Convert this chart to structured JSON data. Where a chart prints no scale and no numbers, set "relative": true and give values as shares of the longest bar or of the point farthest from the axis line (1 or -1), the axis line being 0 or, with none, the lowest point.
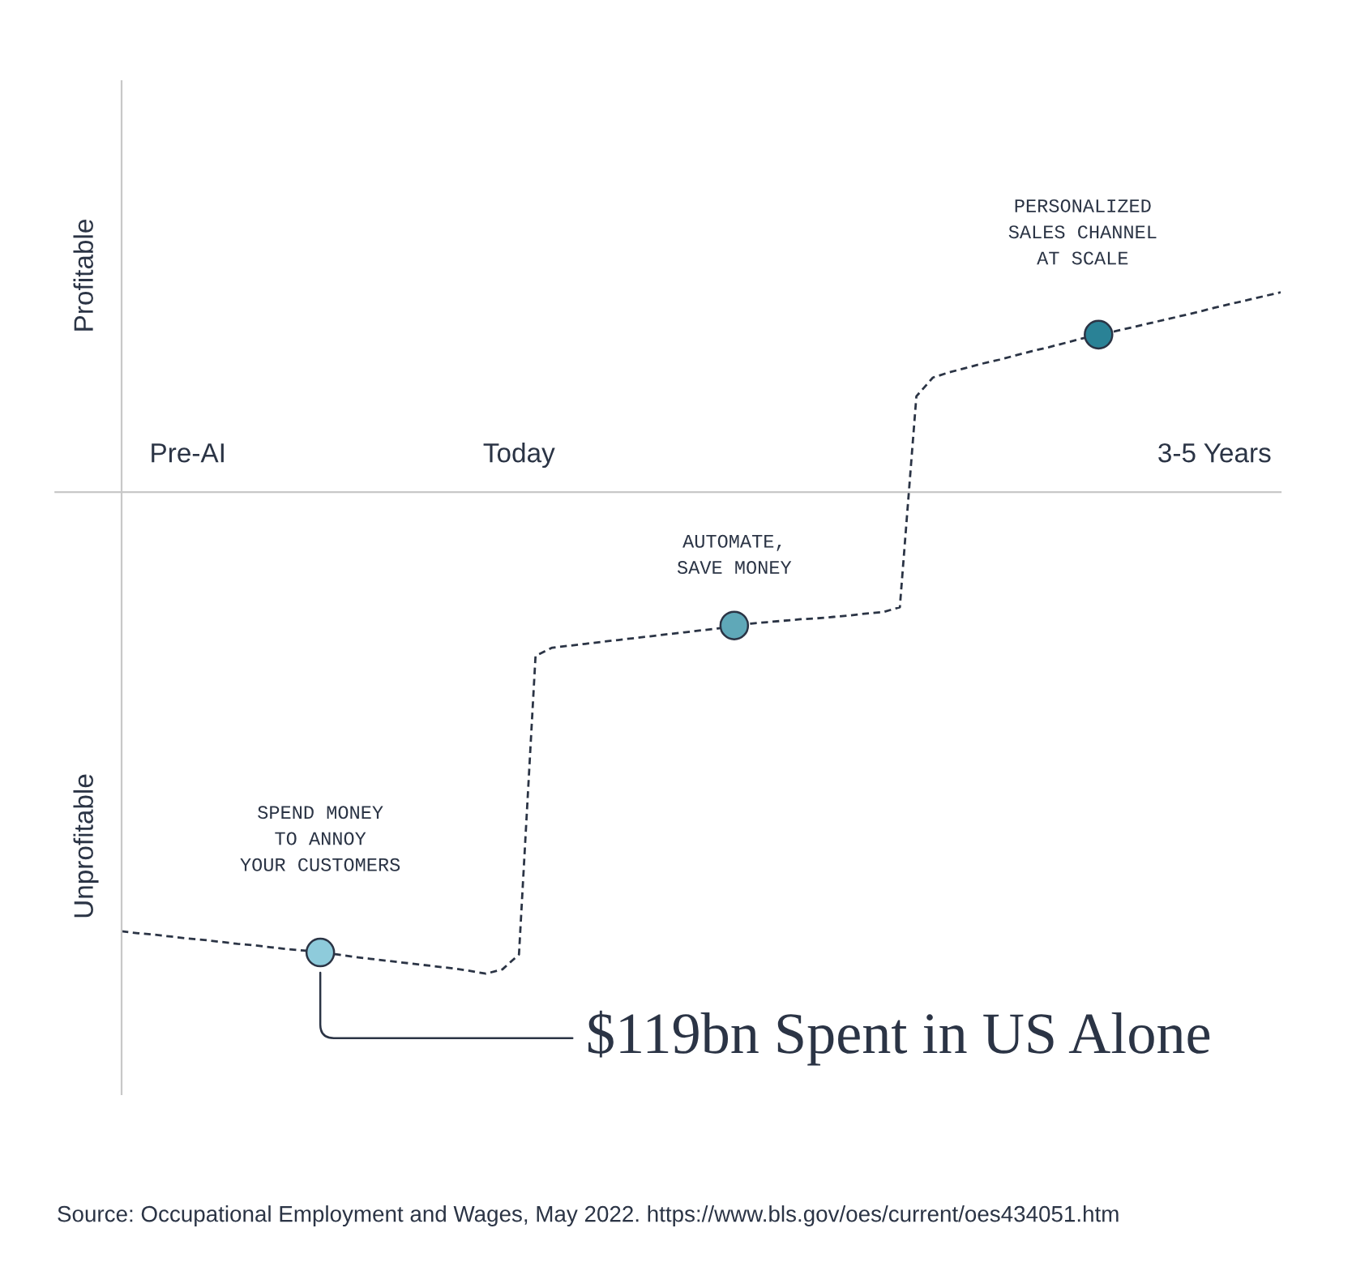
{
  "chart_data": {
    "type": "line",
    "relative": true,
    "grid": false,
    "legend": false,
    "categories": [
      null,
      null,
      null,
      null,
      "Pre-AI",
      null,
      null,
      null,
      null,
      null,
      null,
      null,
      null,
      null,
      null,
      null,
      null,
      null,
      null,
      null,
      null,
      null,
      null,
      null,
      "Today",
      null,
      null,
      null,
      null,
      null,
      null,
      null,
      null,
      null,
      null,
      null,
      null,
      null,
      null,
      null,
      null,
      null,
      null,
      null,
      null,
      null,
      null,
      null,
      null,
      null,
      null,
      null,
      null,
      null,
      null,
      null,
      null,
      null,
      null,
      null,
      null,
      null,
      null,
      null,
      null,
      null,
      "3-5 Years",
      null,
      null,
      null,
      null
    ],
    "series": [
      {
        "color": "#2b3445",
        "line_style": "dashed",
        "marker": "none",
        "values": [
          -0.912,
          -0.916,
          -0.919,
          -0.923,
          -0.927,
          -0.93,
          -0.934,
          -0.938,
          -0.941,
          -0.945,
          -0.949,
          -0.952,
          -0.956,
          -0.96,
          -0.965,
          -0.969,
          -0.973,
          -0.977,
          -0.981,
          -0.985,
          -0.989,
          -0.994,
          -1.0,
          -0.991,
          -0.96,
          -0.34,
          -0.323,
          -0.319,
          -0.315,
          -0.311,
          -0.307,
          -0.303,
          -0.299,
          -0.295,
          -0.291,
          -0.287,
          -0.283,
          -0.277,
          -0.273,
          -0.27,
          -0.267,
          -0.264,
          -0.262,
          -0.259,
          -0.256,
          -0.252,
          -0.249,
          -0.239,
          0.199,
          0.238,
          0.249,
          0.258,
          0.267,
          0.275,
          0.284,
          0.293,
          0.301,
          0.31,
          0.319,
          0.327,
          0.334,
          0.342,
          0.35,
          0.358,
          0.366,
          0.374,
          0.383,
          0.391,
          0.399,
          0.407,
          0.415
        ]
      },
      {
        "type": "scatter",
        "marker": "circle",
        "colors": [
          null,
          null,
          null,
          null,
          null,
          null,
          null,
          null,
          null,
          null,
          null,
          null,
          "#8ecbdb",
          null,
          null,
          null,
          null,
          null,
          null,
          null,
          null,
          null,
          null,
          null,
          null,
          null,
          null,
          null,
          null,
          null,
          null,
          null,
          null,
          null,
          null,
          null,
          null,
          "#5fa8b8",
          null,
          null,
          null,
          null,
          null,
          null,
          null,
          null,
          null,
          null,
          null,
          null,
          null,
          null,
          null,
          null,
          null,
          null,
          null,
          null,
          null,
          "#2a8296",
          null,
          null,
          null,
          null,
          null,
          null,
          null,
          null,
          null,
          null,
          null
        ],
        "values": [
          null,
          null,
          null,
          null,
          null,
          null,
          null,
          null,
          null,
          null,
          null,
          null,
          -0.956,
          null,
          null,
          null,
          null,
          null,
          null,
          null,
          null,
          null,
          null,
          null,
          null,
          null,
          null,
          null,
          null,
          null,
          null,
          null,
          null,
          null,
          null,
          null,
          null,
          -0.277,
          null,
          null,
          null,
          null,
          null,
          null,
          null,
          null,
          null,
          null,
          null,
          null,
          null,
          null,
          null,
          null,
          null,
          null,
          null,
          null,
          null,
          0.327,
          null,
          null,
          null,
          null,
          null,
          null,
          null,
          null,
          null,
          null,
          null
        ]
      }
    ],
    "annotations": [
      "Profitable",
      "Unprofitable",
      "SPEND MONEY\nTO ANNOY\nYOUR CUSTOMERS",
      "AUTOMATE,\nSAVE MONEY",
      "PERSONALIZED\nSALES CHANNEL\nAT SCALE",
      "$119bn Spent in US Alone",
      "Source: Occupational Employment and Wages, May 2022. https://www.bls.gov/oes/current/oes434051.htm"
    ]
  }
}
